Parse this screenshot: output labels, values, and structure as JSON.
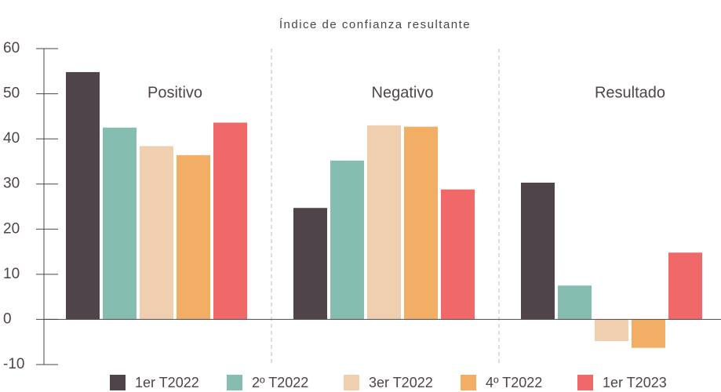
{
  "chart_data": {
    "type": "bar",
    "title": "Índice de confianza resultante",
    "categories": [
      "Positivo",
      "Negativo",
      "Resultado"
    ],
    "series": [
      {
        "name": "1er T2022",
        "color": "#4e4449",
        "values": [
          54.8,
          24.7,
          30.3
        ]
      },
      {
        "name": "2º T2022",
        "color": "#85bdb0",
        "values": [
          42.5,
          35.2,
          7.5
        ]
      },
      {
        "name": "3er T2022",
        "color": "#efcfb0",
        "values": [
          38.4,
          43.0,
          -4.8
        ]
      },
      {
        "name": "4º T2022",
        "color": "#f3ae65",
        "values": [
          36.4,
          42.7,
          -6.3
        ]
      },
      {
        "name": "1er T2023",
        "color": "#f06868",
        "values": [
          43.6,
          28.8,
          14.8
        ]
      }
    ],
    "ylim": [
      -10,
      60
    ],
    "yticks": [
      -10,
      0,
      10,
      20,
      30,
      40,
      50,
      60
    ]
  }
}
